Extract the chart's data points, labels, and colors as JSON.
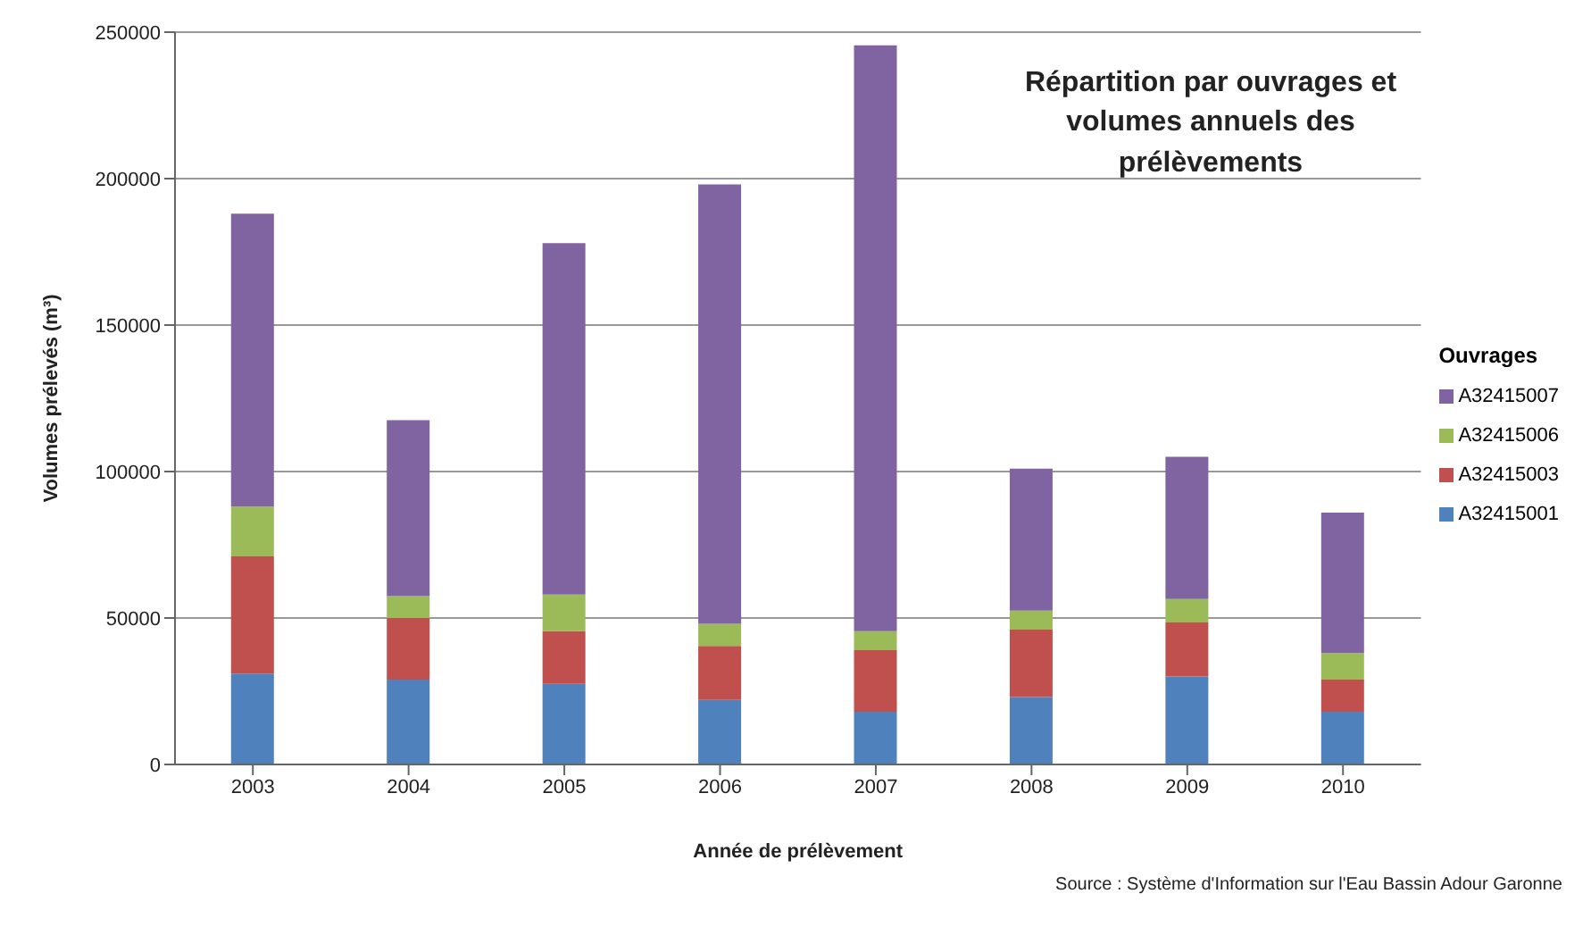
{
  "chart_data": {
    "type": "bar",
    "stacked": true,
    "title": "Répartition par ouvrages et volumes annuels des prélèvements",
    "xlabel": "Année de prélèvement",
    "ylabel": "Volumes prélevés (m³)",
    "legend_title": "Ouvrages",
    "annotations": [
      "Source : Système d'Information sur l'Eau Bassin Adour Garonne"
    ],
    "categories": [
      "2003",
      "2004",
      "2005",
      "2006",
      "2007",
      "2008",
      "2009",
      "2010"
    ],
    "series": [
      {
        "name": "A32415001",
        "color": "#4f81bd",
        "values": [
          31000,
          29000,
          27500,
          22000,
          18000,
          23000,
          30000,
          18000
        ]
      },
      {
        "name": "A32415003",
        "color": "#c0504d",
        "values": [
          40000,
          21000,
          18000,
          18500,
          21000,
          23000,
          18500,
          11000
        ]
      },
      {
        "name": "A32415006",
        "color": "#9bbb59",
        "values": [
          17000,
          7500,
          12500,
          7500,
          6500,
          6500,
          8000,
          9000
        ]
      },
      {
        "name": "A32415007",
        "color": "#8064a2",
        "values": [
          100000,
          60000,
          120000,
          150000,
          200000,
          48500,
          48500,
          48000
        ]
      }
    ],
    "ylim": [
      0,
      250000
    ],
    "yticks": [
      0,
      50000,
      100000,
      150000,
      200000,
      250000
    ],
    "grid": "y",
    "legend": "right"
  }
}
